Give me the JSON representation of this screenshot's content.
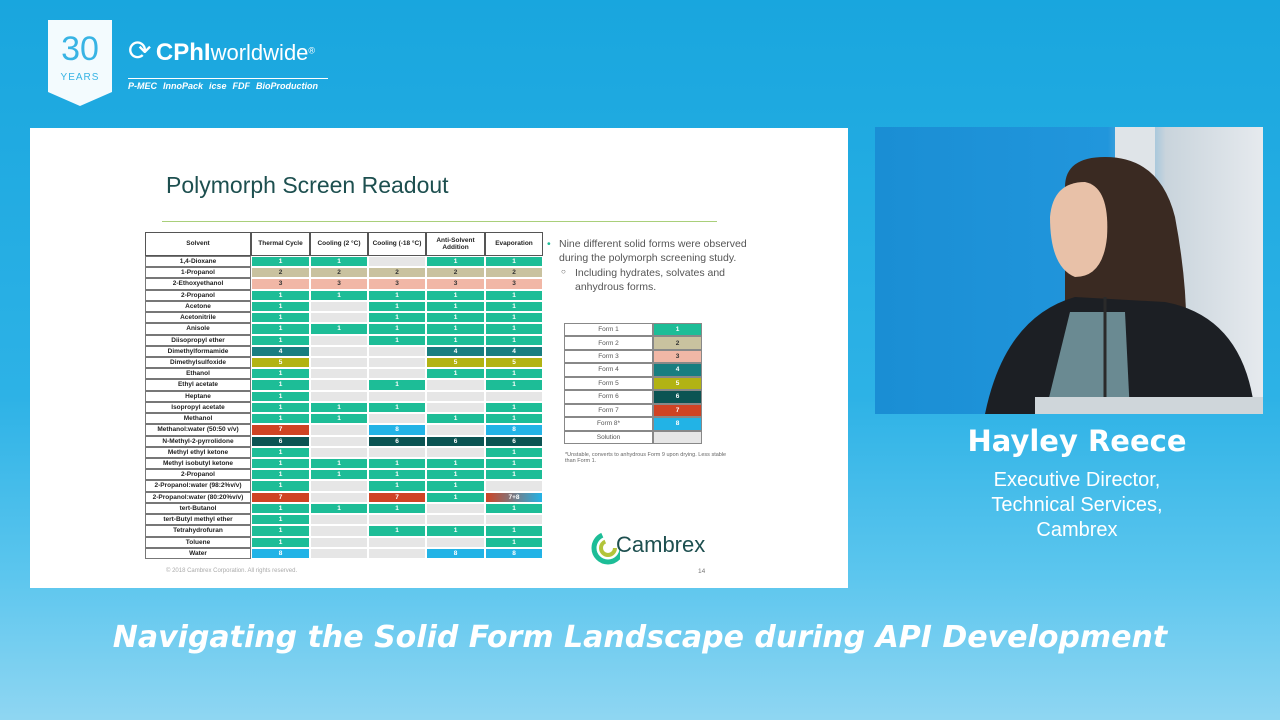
{
  "header": {
    "anniversary": "30",
    "anniversary_label": "YEARS",
    "brand": "CPhI",
    "brand_suffix": "worldwide",
    "brand_mark": "®",
    "events": [
      "P-MEC",
      "InnoPack",
      "icse",
      "FDF",
      "BioProduction"
    ]
  },
  "slide": {
    "title": "Polymorph Screen Readout",
    "table": {
      "columns": [
        "Solvent",
        "Thermal Cycle",
        "Cooling (2 °C)",
        "Cooling (-18 °C)",
        "Anti-Solvent Addition",
        "Evaporation"
      ],
      "rows": [
        [
          "1,4-Dioxane",
          1,
          1,
          null,
          1,
          1
        ],
        [
          "1-Propanol",
          2,
          2,
          2,
          2,
          2
        ],
        [
          "2-Ethoxyethanol",
          3,
          3,
          3,
          3,
          3
        ],
        [
          "2-Propanol",
          1,
          1,
          1,
          1,
          1
        ],
        [
          "Acetone",
          1,
          null,
          1,
          1,
          1
        ],
        [
          "Acetonitrile",
          1,
          null,
          1,
          1,
          1
        ],
        [
          "Anisole",
          1,
          1,
          1,
          1,
          1
        ],
        [
          "Diisopropyl ether",
          1,
          null,
          1,
          1,
          1
        ],
        [
          "Dimethylformamide",
          4,
          null,
          null,
          4,
          4
        ],
        [
          "Dimethylsulfoxide",
          5,
          null,
          null,
          5,
          5
        ],
        [
          "Ethanol",
          1,
          null,
          null,
          1,
          1
        ],
        [
          "Ethyl acetate",
          1,
          null,
          1,
          null,
          1
        ],
        [
          "Heptane",
          1,
          null,
          null,
          null,
          null
        ],
        [
          "Isopropyl acetate",
          1,
          1,
          1,
          null,
          1
        ],
        [
          "Methanol",
          1,
          1,
          null,
          1,
          1
        ],
        [
          "Methanol:water (50:50 v/v)",
          7,
          null,
          8,
          null,
          8
        ],
        [
          "N-Methyl-2-pyrrolidone",
          6,
          null,
          6,
          6,
          6
        ],
        [
          "Methyl ethyl ketone",
          1,
          null,
          null,
          null,
          1
        ],
        [
          "Methyl isobutyl ketone",
          1,
          1,
          1,
          1,
          1
        ],
        [
          "2-Propanol",
          1,
          1,
          1,
          1,
          1
        ],
        [
          "2-Propanol:water (98:2%v/v)",
          1,
          null,
          1,
          1,
          null
        ],
        [
          "2-Propanol:water (80:20%v/v)",
          7,
          null,
          7,
          1,
          "7+8"
        ],
        [
          "tert-Butanol",
          1,
          1,
          1,
          null,
          1
        ],
        [
          "tert-Butyl methyl ether",
          1,
          null,
          null,
          null,
          null
        ],
        [
          "Tetrahydrofuran",
          1,
          null,
          1,
          1,
          1
        ],
        [
          "Toluene",
          1,
          null,
          null,
          null,
          1
        ],
        [
          "Water",
          8,
          null,
          null,
          8,
          8
        ]
      ]
    },
    "bullets": [
      {
        "text": "Nine different solid forms were observed during the polymorph screening study.",
        "sub": [
          "Including hydrates, solvates and anhydrous forms."
        ]
      }
    ],
    "legend": [
      {
        "label": "Form 1",
        "value": 1,
        "color": "#1dbd97"
      },
      {
        "label": "Form 2",
        "value": 2,
        "color": "#c9c29f"
      },
      {
        "label": "Form 3",
        "value": 3,
        "color": "#f1b7a6"
      },
      {
        "label": "Form 4",
        "value": 4,
        "color": "#187e80"
      },
      {
        "label": "Form 5",
        "value": 5,
        "color": "#b2b313"
      },
      {
        "label": "Form 6",
        "value": 6,
        "color": "#0b5453"
      },
      {
        "label": "Form 7",
        "value": 7,
        "color": "#cf4324"
      },
      {
        "label": "Form 8*",
        "value": 8,
        "color": "#22b3e6"
      },
      {
        "label": "Solution",
        "color": "#e6e6e6"
      }
    ],
    "footnote": "*Unstable, converts to anhydrous Form 9 upon drying. Less stable than Form 1.",
    "copyright": "© 2018 Cambrex Corporation. All rights reserved.",
    "page": 14,
    "logo": "Cambrex"
  },
  "speaker": {
    "name": "Hayley Reece",
    "title_lines": [
      "Executive Director,",
      "Technical Services,",
      "Cambrex"
    ]
  },
  "caption": "Navigating the Solid Form Landscape during API Development"
}
